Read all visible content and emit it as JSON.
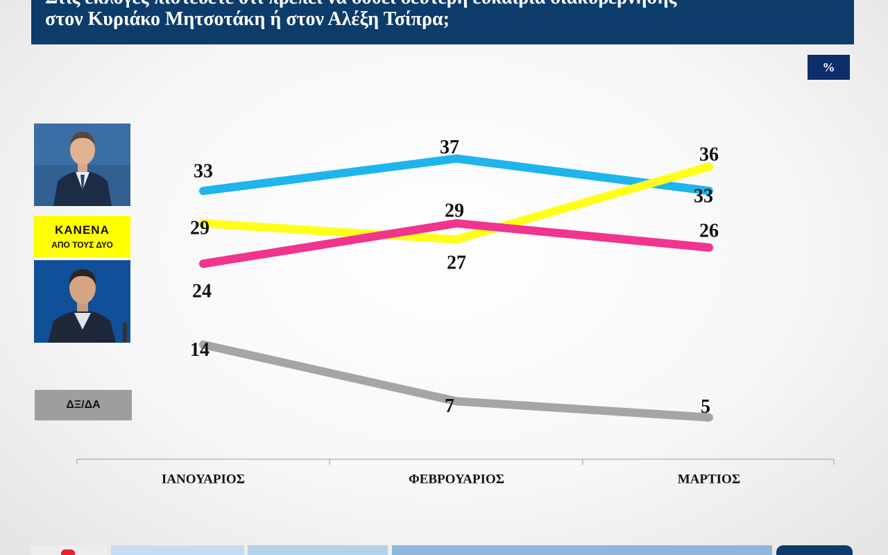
{
  "title": {
    "line1": "Στις εκλογές πιστεύετε ότι πρέπει να δοθεί δεύτερη ευκαιρία διακυβέρνησης",
    "line2": "στον Κυριάκο Μητσοτάκη ή στον Αλέξη Τσίπρα;"
  },
  "unit": "%",
  "legend": {
    "none_line1": "ΚΑΝΕΝΑ",
    "none_line2": "ΑΠΟ ΤΟΥΣ ΔΥΟ",
    "dk": "ΔΞ/ΔΑ"
  },
  "chart_data": {
    "type": "line",
    "categories": [
      "ΙΑΝΟΥΑΡΙΟΣ",
      "ΦΕΒΡΟΥΑΡΙΟΣ",
      "ΜΑΡΤΙΟΣ"
    ],
    "grid": false,
    "series": [
      {
        "key": "mitsotakis",
        "color": "#1eb4ec",
        "values": [
          33,
          37,
          33
        ]
      },
      {
        "key": "none_of_two",
        "color": "#ffff1a",
        "values": [
          29,
          27,
          36
        ]
      },
      {
        "key": "tsipras",
        "color": "#f0348f",
        "values": [
          24,
          29,
          26
        ]
      },
      {
        "key": "dk_na",
        "color": "#a5a5a5",
        "values": [
          14,
          7,
          5
        ]
      }
    ]
  }
}
